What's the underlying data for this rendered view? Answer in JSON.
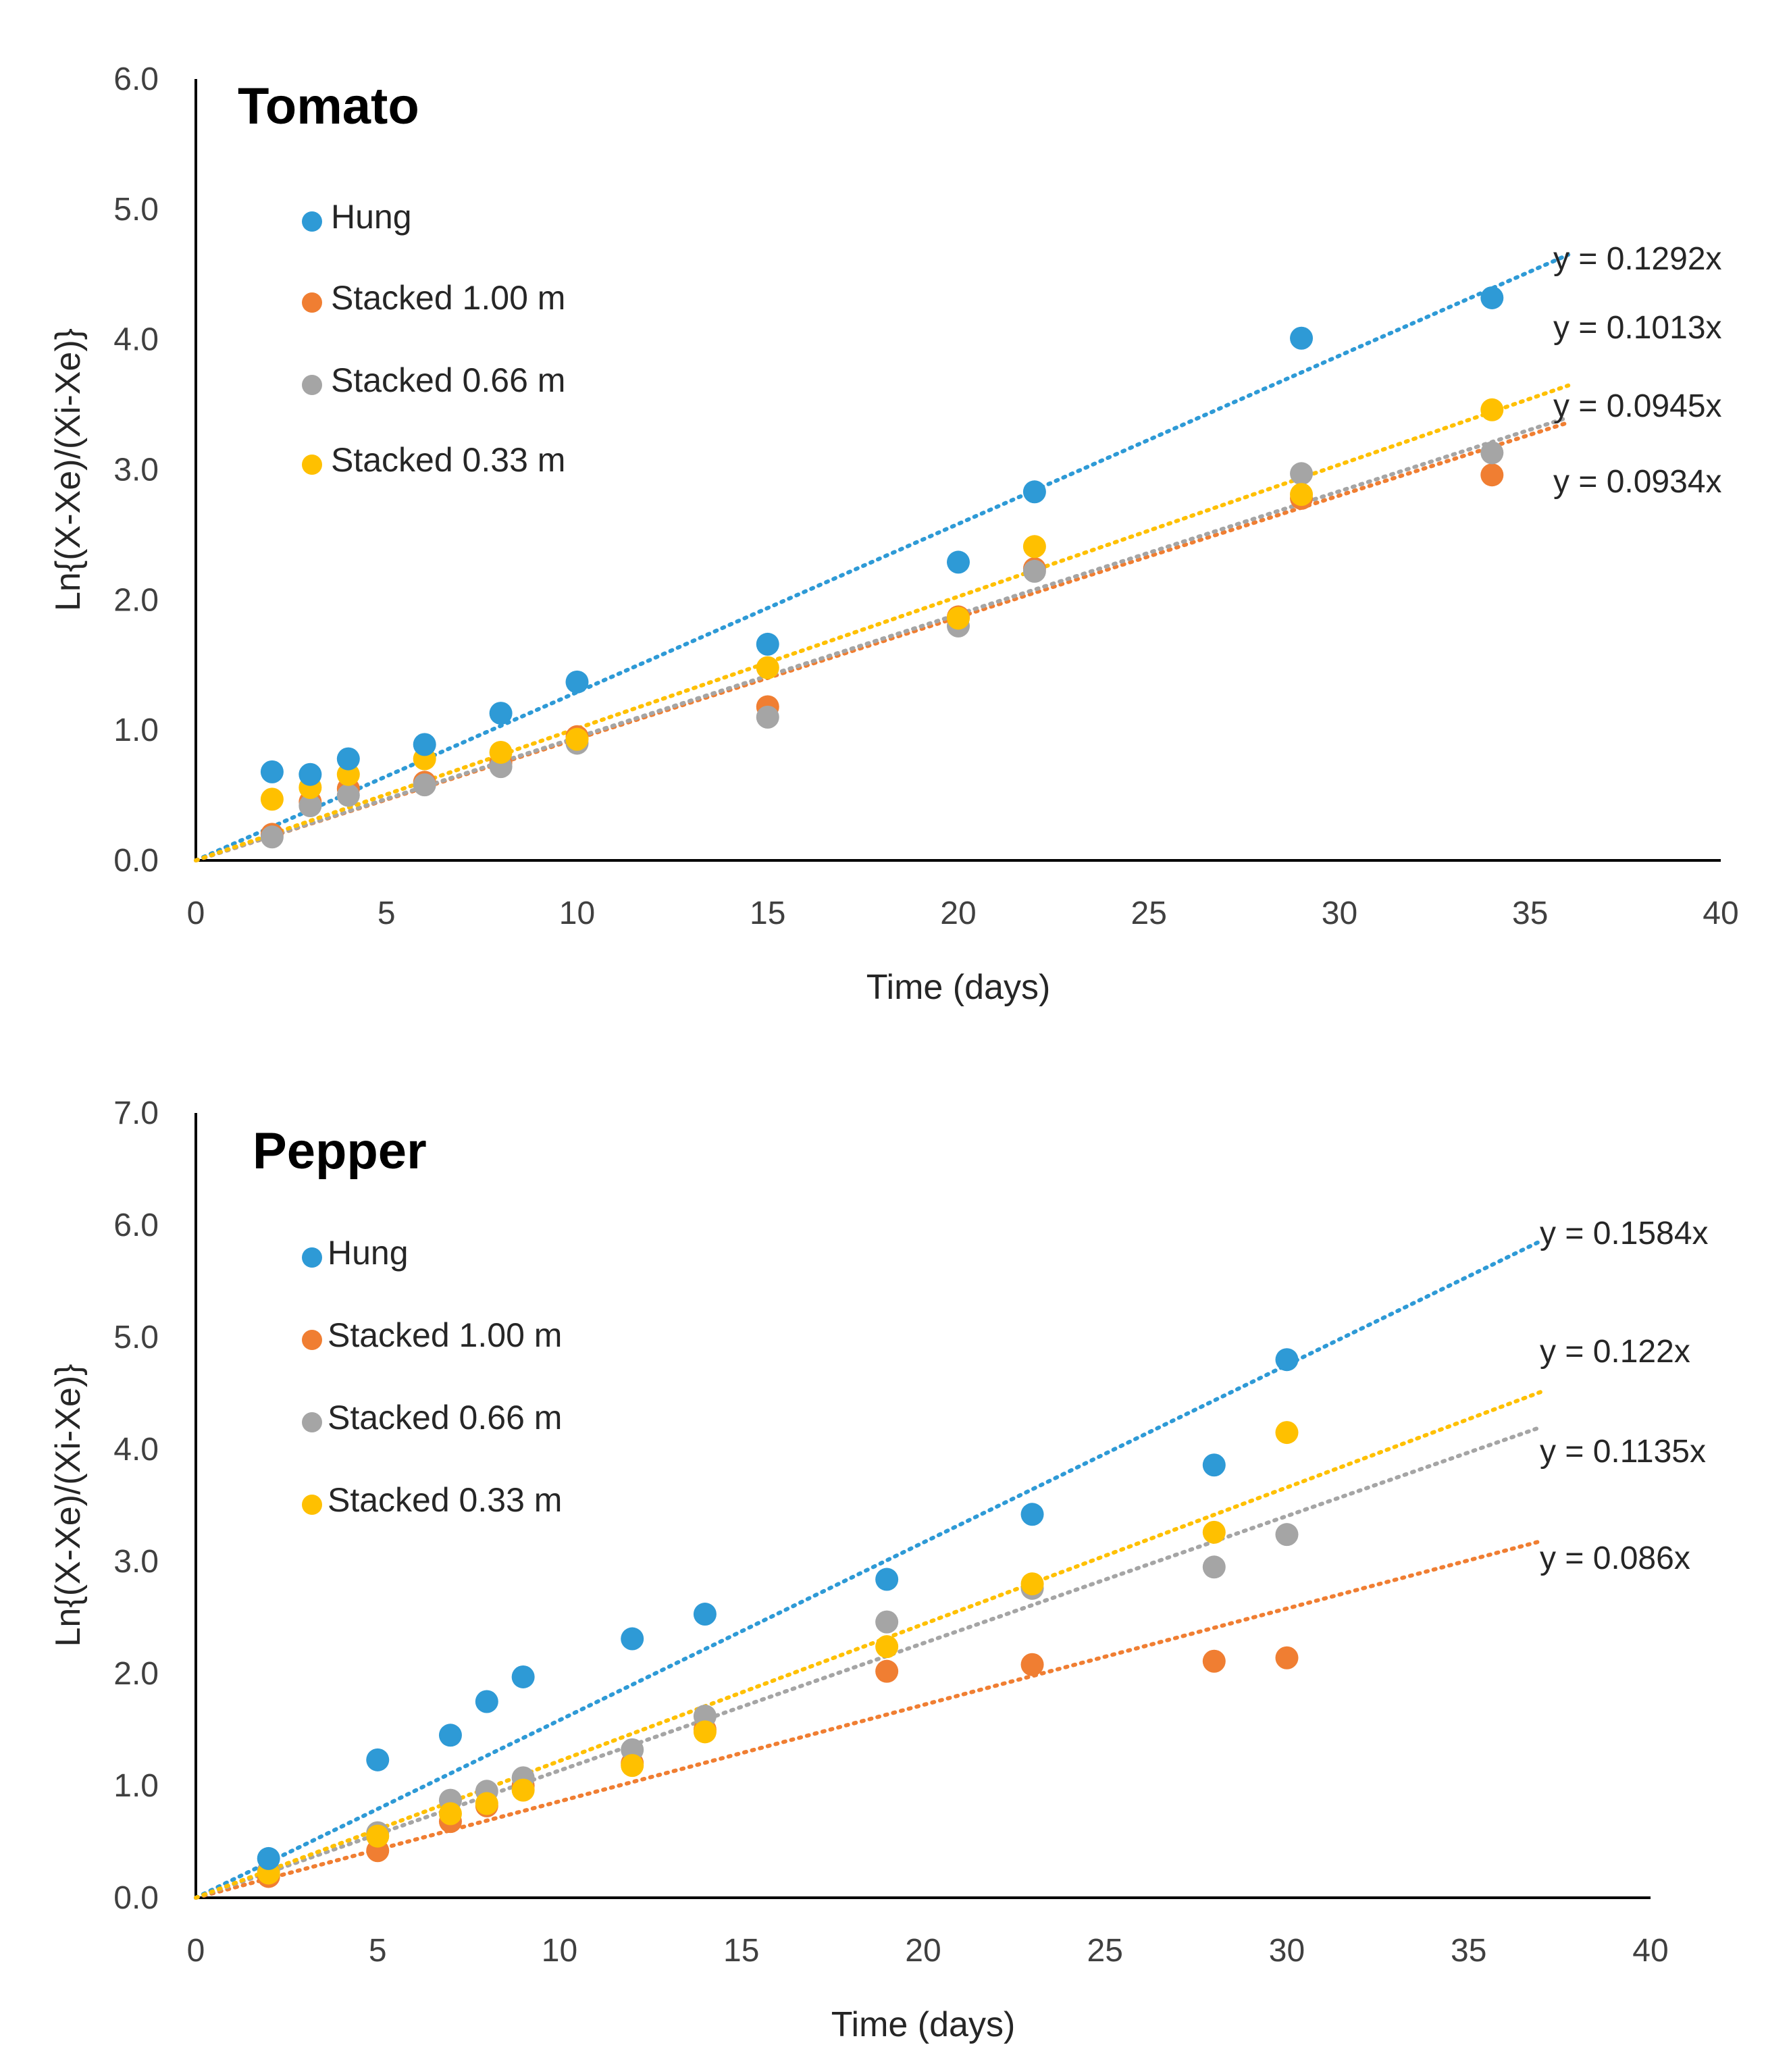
{
  "chart_data": [
    {
      "type": "scatter",
      "title": "Tomato",
      "xlabel": "Time (days)",
      "ylabel": "Ln{(X-Xe)/(Xi-Xe)}",
      "xlim": [
        0,
        40
      ],
      "ylim": [
        0,
        6
      ],
      "xticks": [
        "0",
        "5",
        "10",
        "15",
        "20",
        "25",
        "30",
        "35",
        "40"
      ],
      "yticks": [
        "0.0",
        "1.0",
        "2.0",
        "3.0",
        "4.0",
        "5.0",
        "6.0"
      ],
      "legend_position": "top-left",
      "trendline_xmax": 36,
      "series": [
        {
          "name": "Hung",
          "color": "#2e9ad6",
          "slope": 0.1292,
          "equation": "y = 0.1292x",
          "x": [
            2,
            3,
            4,
            6,
            8,
            10,
            15,
            20,
            22,
            29,
            34
          ],
          "y": [
            0.68,
            0.66,
            0.78,
            0.89,
            1.13,
            1.37,
            1.66,
            2.29,
            2.83,
            4.01,
            4.32
          ]
        },
        {
          "name": "Stacked 1.00 m",
          "color": "#f07e32",
          "slope": 0.0934,
          "equation": "y = 0.0934x",
          "x": [
            2,
            3,
            4,
            6,
            8,
            10,
            15,
            20,
            22,
            29,
            34
          ],
          "y": [
            0.2,
            0.45,
            0.55,
            0.6,
            0.75,
            0.95,
            1.18,
            1.87,
            2.24,
            2.78,
            2.96
          ]
        },
        {
          "name": "Stacked 0.66 m",
          "color": "#a5a5a5",
          "slope": 0.0945,
          "equation": "y = 0.0945x",
          "x": [
            2,
            3,
            4,
            6,
            8,
            10,
            15,
            20,
            22,
            29,
            34
          ],
          "y": [
            0.18,
            0.42,
            0.5,
            0.58,
            0.72,
            0.9,
            1.1,
            1.8,
            2.22,
            2.97,
            3.13
          ]
        },
        {
          "name": "Stacked 0.33 m",
          "color": "#ffc000",
          "slope": 0.1013,
          "equation": "y = 0.1013x",
          "x": [
            2,
            3,
            4,
            6,
            8,
            10,
            15,
            20,
            22,
            29,
            34
          ],
          "y": [
            0.47,
            0.56,
            0.66,
            0.78,
            0.83,
            0.93,
            1.48,
            1.86,
            2.41,
            2.81,
            3.46
          ]
        }
      ],
      "equation_labels_order": [
        "y = 0.1292x",
        "y = 0.1013x",
        "y = 0.0945x",
        "y = 0.0934x"
      ]
    },
    {
      "type": "scatter",
      "title": "Pepper",
      "xlabel": "Time (days)",
      "ylabel": "Ln{(X-Xe)/(Xi-Xe)}",
      "xlim": [
        0,
        40
      ],
      "ylim": [
        0,
        7
      ],
      "xticks": [
        "0",
        "5",
        "10",
        "15",
        "20",
        "25",
        "30",
        "35",
        "40"
      ],
      "yticks": [
        "0.0",
        "1.0",
        "2.0",
        "3.0",
        "4.0",
        "5.0",
        "6.0",
        "7.0"
      ],
      "legend_position": "top-left",
      "trendline_xmax": 37,
      "series": [
        {
          "name": "Hung",
          "color": "#2e9ad6",
          "slope": 0.1584,
          "equation": "y = 0.1584x",
          "x": [
            2,
            5,
            7,
            8,
            9,
            12,
            14,
            19,
            23,
            28,
            30
          ],
          "y": [
            0.35,
            1.23,
            1.45,
            1.75,
            1.97,
            2.31,
            2.53,
            2.84,
            3.42,
            3.86,
            4.8
          ]
        },
        {
          "name": "Stacked 1.00 m",
          "color": "#f07e32",
          "slope": 0.086,
          "equation": "y = 0.086x",
          "x": [
            2,
            5,
            7,
            8,
            9,
            12,
            14,
            19,
            23,
            28,
            30
          ],
          "y": [
            0.19,
            0.42,
            0.68,
            0.82,
            1.0,
            1.2,
            1.5,
            2.02,
            2.08,
            2.11,
            2.14
          ]
        },
        {
          "name": "Stacked 0.66 m",
          "color": "#a5a5a5",
          "slope": 0.1135,
          "equation": "y = 0.1135x",
          "x": [
            2,
            5,
            7,
            8,
            9,
            12,
            14,
            19,
            23,
            28,
            30
          ],
          "y": [
            0.24,
            0.58,
            0.87,
            0.95,
            1.07,
            1.32,
            1.62,
            2.46,
            2.76,
            2.95,
            3.24
          ]
        },
        {
          "name": "Stacked 0.33 m",
          "color": "#ffc000",
          "slope": 0.122,
          "equation": "y = 0.122x",
          "x": [
            2,
            5,
            7,
            8,
            9,
            12,
            14,
            19,
            23,
            28,
            30
          ],
          "y": [
            0.22,
            0.55,
            0.75,
            0.84,
            0.96,
            1.18,
            1.48,
            2.24,
            2.8,
            3.26,
            4.15
          ]
        }
      ],
      "equation_labels_order": [
        "y = 0.1584x",
        "y = 0.122x",
        "y = 0.1135x",
        "y = 0.086x"
      ]
    }
  ]
}
